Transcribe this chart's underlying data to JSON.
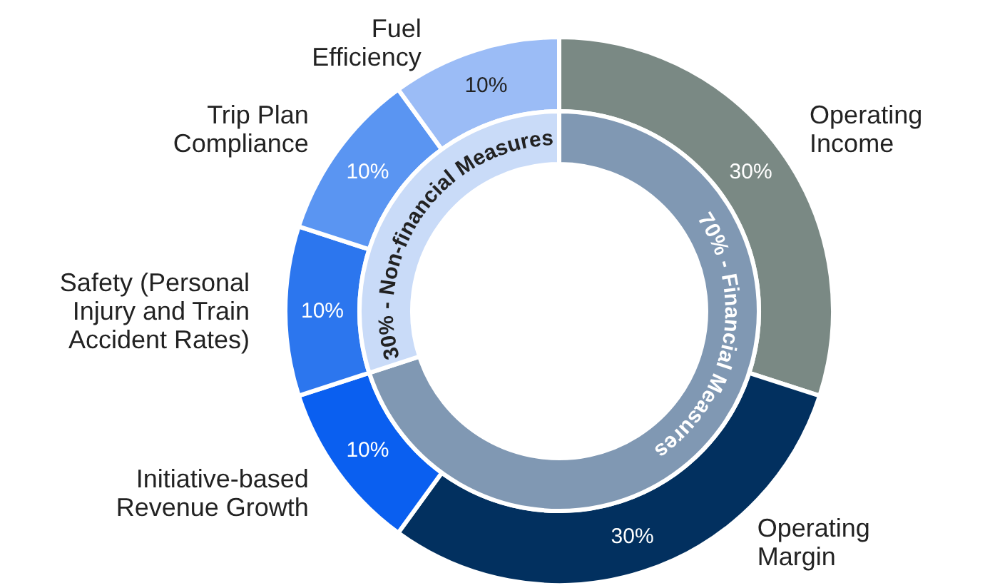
{
  "chart_data": [
    {
      "type": "donut",
      "categories": [
        "Operating Income",
        "Operating Margin",
        "Initiative-based Revenue Growth",
        "Safety (Personal Injury and Train Accident Rates)",
        "Trip Plan Compliance",
        "Fuel Efficiency"
      ],
      "values": [
        30,
        30,
        10,
        10,
        10,
        10
      ],
      "colors": [
        "#7a8984",
        "#02305f",
        "#0a5ff0",
        "#2c76ee",
        "#5a95f2",
        "#9bbcf6"
      ],
      "value_labels": [
        "30%",
        "30%",
        "10%",
        "10%",
        "10%",
        "10%"
      ]
    },
    {
      "type": "donut",
      "categories": [
        "70% - Financial Measures",
        "30% - Non-financial Measures"
      ],
      "values": [
        70,
        30
      ],
      "colors": [
        "#8098b3",
        "#c9dbf8"
      ]
    }
  ]
}
